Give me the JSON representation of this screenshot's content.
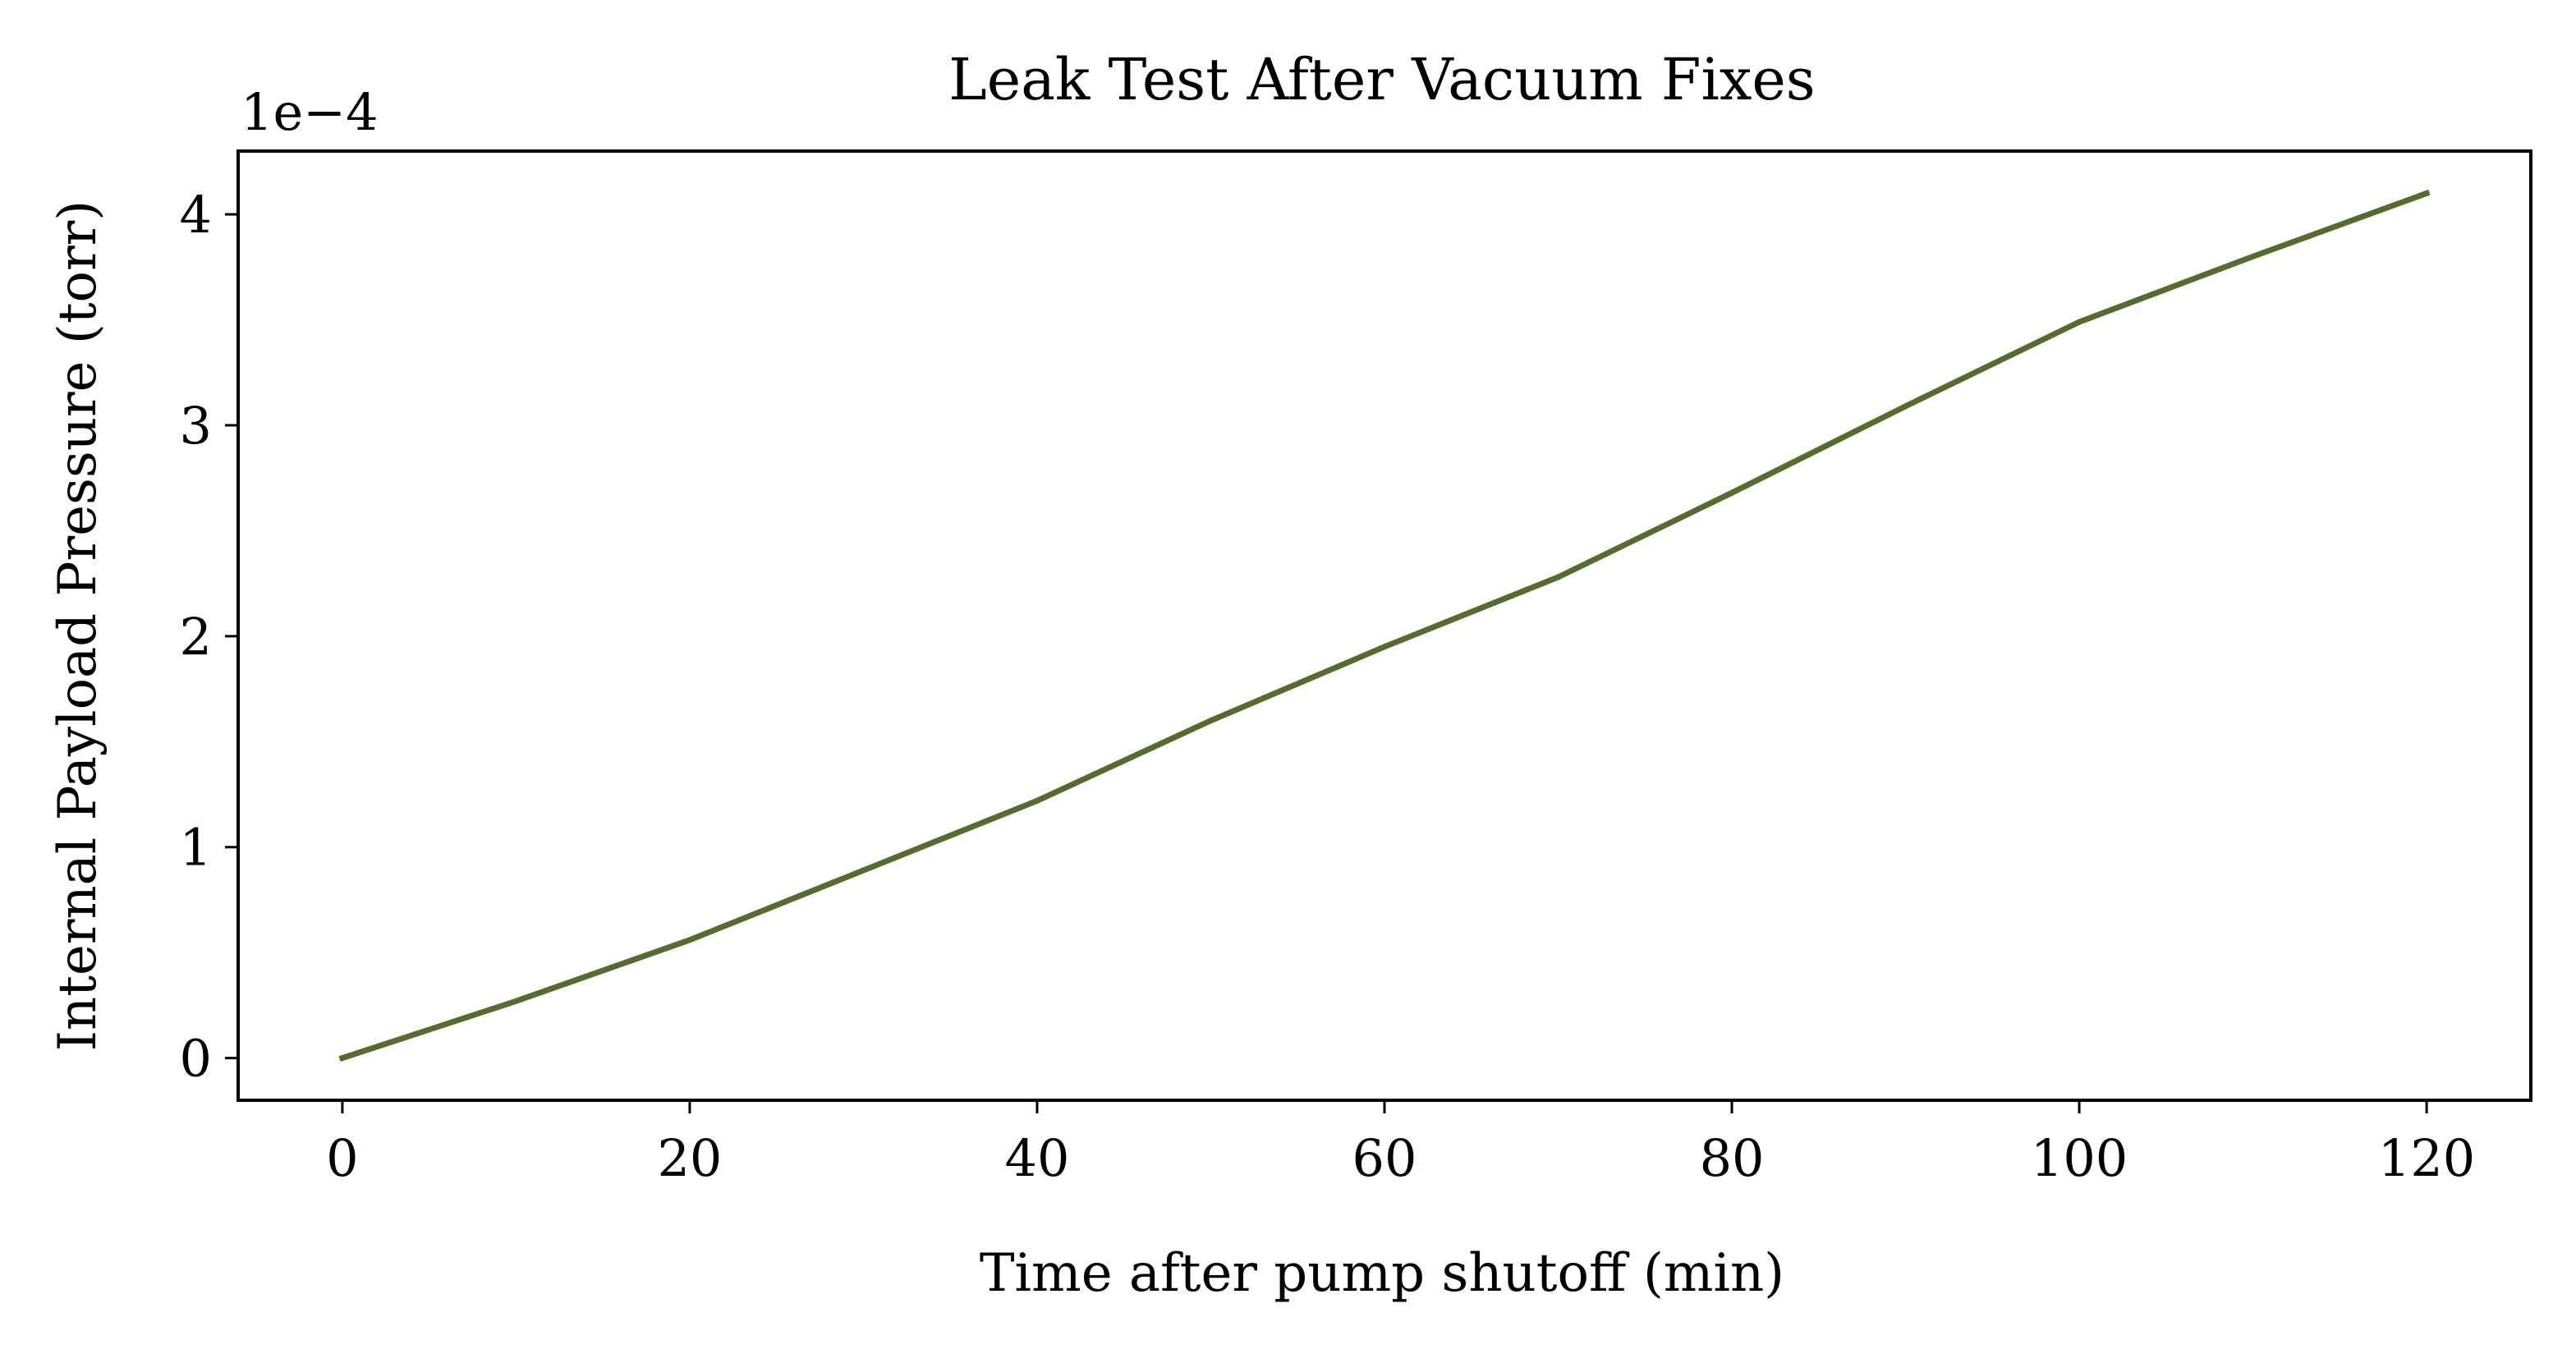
{
  "chart_data": {
    "type": "line",
    "title": "Leak Test After Vacuum Fixes",
    "xlabel": "Time after pump shutoff (min)",
    "ylabel": "Internal Payload Pressure (torr)",
    "y_offset_label": "1e−4",
    "xlim": [
      -6,
      126
    ],
    "ylim": [
      -0.2,
      4.3
    ],
    "xticks": [
      0,
      20,
      40,
      60,
      80,
      100,
      120
    ],
    "xtick_labels": [
      "0",
      "20",
      "40",
      "60",
      "80",
      "100",
      "120"
    ],
    "yticks": [
      0,
      1,
      2,
      3,
      4
    ],
    "ytick_labels": [
      "0",
      "1",
      "2",
      "3",
      "4"
    ],
    "grid": false,
    "series": [
      {
        "color": "#556b2f",
        "x": [
          0,
          10,
          20,
          30,
          40,
          50,
          60,
          70,
          80,
          90,
          100,
          110,
          120
        ],
        "y": [
          0.0,
          0.27,
          0.56,
          0.89,
          1.22,
          1.6,
          1.95,
          2.28,
          2.68,
          3.09,
          3.49,
          3.8,
          4.1
        ]
      }
    ]
  }
}
